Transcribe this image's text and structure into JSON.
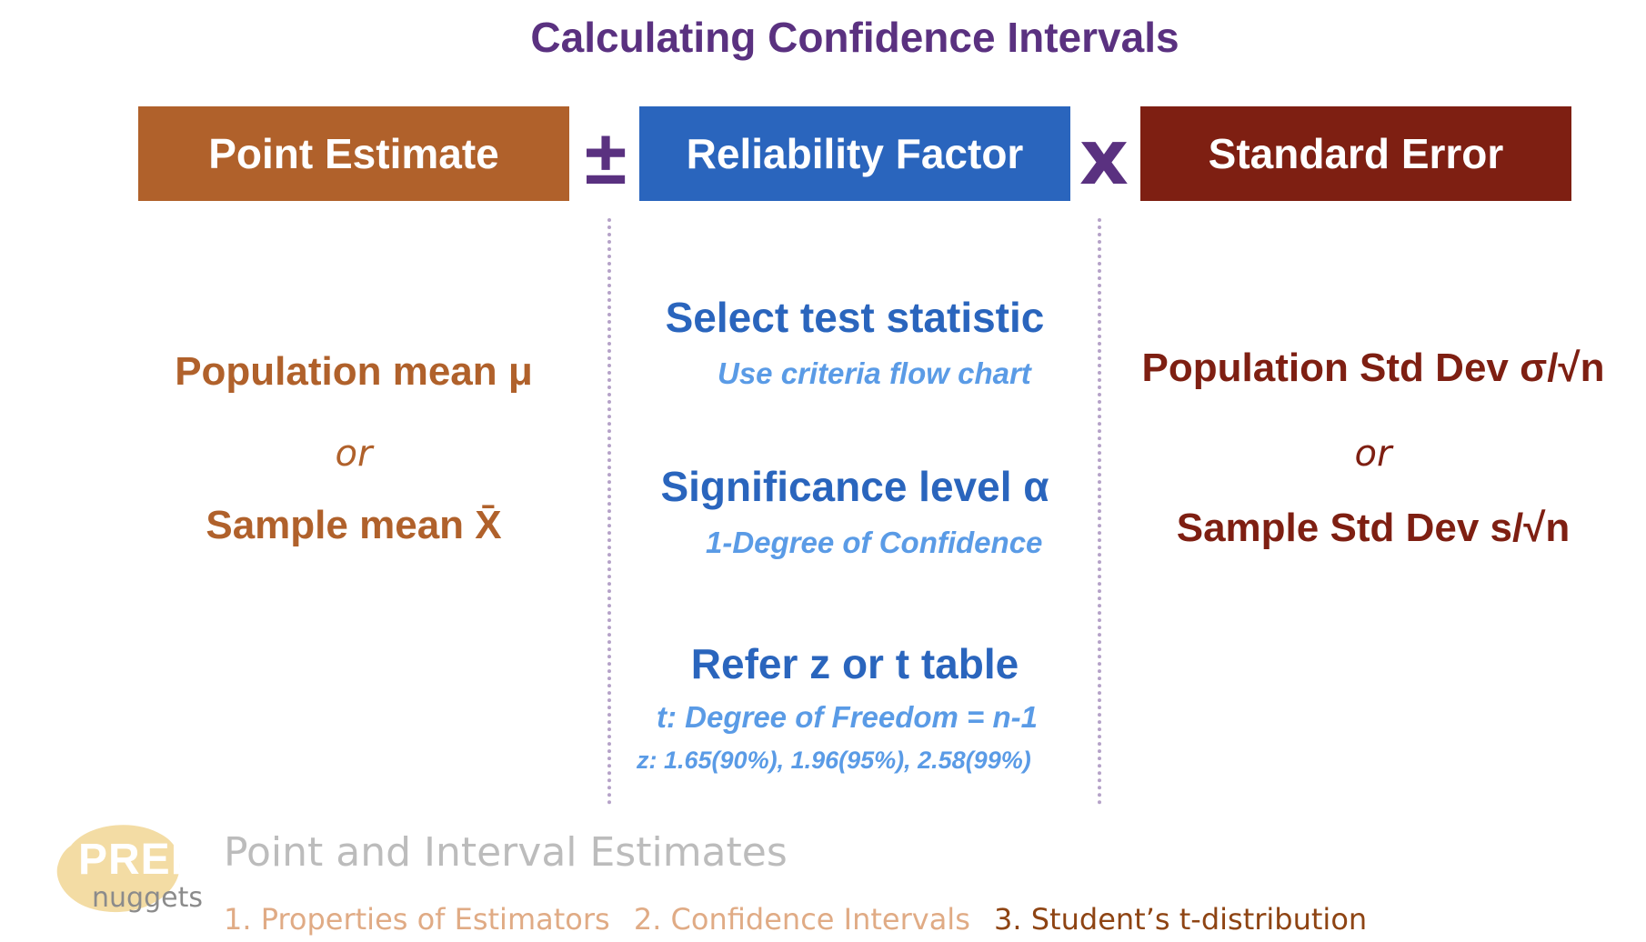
{
  "title": "Calculating Confidence Intervals",
  "formula": {
    "point_estimate": "Point Estimate",
    "plus_minus": "±",
    "reliability_factor": "Reliability Factor",
    "times": "x",
    "standard_error": "Standard Error"
  },
  "point_estimate_col": {
    "line1": "Population mean μ",
    "or": "or",
    "line2": "Sample mean X̄"
  },
  "reliability_col": {
    "step1_title": "Select test statistic",
    "step1_sub": "Use criteria flow chart",
    "step2_title": "Significance level α",
    "step2_sub": "1-Degree of Confidence",
    "step3_title": "Refer z or t table",
    "step3_sub1": "t: Degree of Freedom = n-1",
    "step3_sub2": "z: 1.65(90%), 1.96(95%), 2.58(99%)"
  },
  "standard_error_col": {
    "line1": "Population Std Dev σ/√n",
    "or": "or",
    "line2": "Sample Std Dev s/√n"
  },
  "logo": {
    "prep": "PREP",
    "nuggets": "nuggets"
  },
  "footer": {
    "title": "Point and Interval Estimates",
    "links": [
      "1. Properties of Estimators",
      "2. Confidence Intervals",
      "3. Student’s t-distribution"
    ]
  },
  "colors": {
    "title": "#5a3180",
    "point_estimate": "#b0612b",
    "reliability_factor": "#2a65bd",
    "standard_error": "#7e1f12",
    "sub_text": "#5a9be6"
  }
}
